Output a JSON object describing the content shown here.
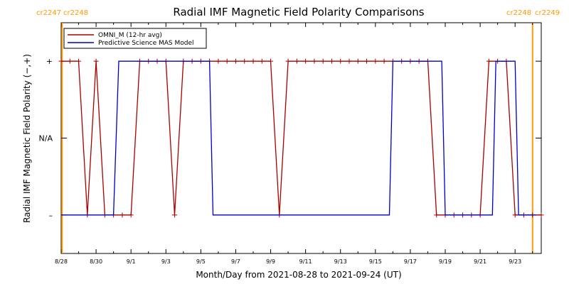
{
  "chart_data": {
    "type": "line",
    "title": "Radial IMF Magnetic Field Polarity Comparisons",
    "xlabel": "Month/Day from 2021-08-28 to 2021-09-24 (UT)",
    "ylabel": "Radial IMF Magnetic Field Polarity (−,+)",
    "xlim": [
      0,
      27.5
    ],
    "ylim": [
      -1.5,
      1.5
    ],
    "x_ticks": [
      {
        "x": 0,
        "label": "8/28"
      },
      {
        "x": 2,
        "label": "8/30"
      },
      {
        "x": 4,
        "label": "9/1"
      },
      {
        "x": 6,
        "label": "9/3"
      },
      {
        "x": 8,
        "label": "9/5"
      },
      {
        "x": 10,
        "label": "9/7"
      },
      {
        "x": 12,
        "label": "9/9"
      },
      {
        "x": 14,
        "label": "9/11"
      },
      {
        "x": 16,
        "label": "9/13"
      },
      {
        "x": 18,
        "label": "9/15"
      },
      {
        "x": 20,
        "label": "9/17"
      },
      {
        "x": 22,
        "label": "9/19"
      },
      {
        "x": 24,
        "label": "9/21"
      },
      {
        "x": 26,
        "label": "9/23"
      }
    ],
    "y_ticks": [
      {
        "y": 1,
        "label": "+"
      },
      {
        "y": 0,
        "label": "N/A"
      },
      {
        "y": -1,
        "label": "–"
      }
    ],
    "carrington_markers": [
      {
        "x": 0.05,
        "left_label": "cr2247",
        "right_label": "cr2248",
        "color": "#ff9900"
      },
      {
        "x": 27.0,
        "left_label": "cr2248",
        "right_label": "cr2249",
        "color": "#ff9900"
      }
    ],
    "legend": {
      "position": "top-left"
    },
    "series": [
      {
        "name": "OMNI_M (12-hr avg)",
        "color": "#aa0000",
        "marker": "plus",
        "x": [
          0,
          0.5,
          1,
          1.5,
          2,
          2.5,
          3,
          3.5,
          4,
          4.5,
          5,
          5.5,
          6,
          6.5,
          7,
          7.5,
          8,
          8.5,
          9,
          9.5,
          10,
          10.5,
          11,
          11.5,
          12,
          12.5,
          13,
          13.5,
          14,
          14.5,
          15,
          15.5,
          16,
          16.5,
          17,
          17.5,
          18,
          18.5,
          19,
          19.5,
          20,
          20.5,
          21,
          21.5,
          22,
          22.5,
          23,
          23.5,
          24,
          24.5,
          25,
          25.5,
          26,
          26.5,
          27,
          27.5
        ],
        "y": [
          1,
          1,
          1,
          -1,
          1,
          -1,
          -1,
          -1,
          -1,
          1,
          1,
          1,
          1,
          -1,
          1,
          1,
          1,
          1,
          1,
          1,
          1,
          1,
          1,
          1,
          1,
          -1,
          1,
          1,
          1,
          1,
          1,
          1,
          1,
          1,
          1,
          1,
          1,
          1,
          1,
          1,
          1,
          1,
          1,
          -1,
          -1,
          -1,
          -1,
          -1,
          -1,
          1,
          1,
          1,
          -1,
          -1,
          -1,
          -1
        ]
      },
      {
        "name": "Predictive Science MAS Model",
        "color": "#0000cc",
        "x": [
          0,
          3.0,
          3.3,
          8.5,
          8.7,
          18.8,
          19.0,
          21.8,
          22.0,
          24.7,
          24.9,
          26.0,
          26.2,
          27.2
        ],
        "y": [
          -1,
          -1,
          1,
          1,
          -1,
          -1,
          1,
          1,
          -1,
          -1,
          1,
          1,
          -1,
          -1
        ]
      }
    ]
  }
}
